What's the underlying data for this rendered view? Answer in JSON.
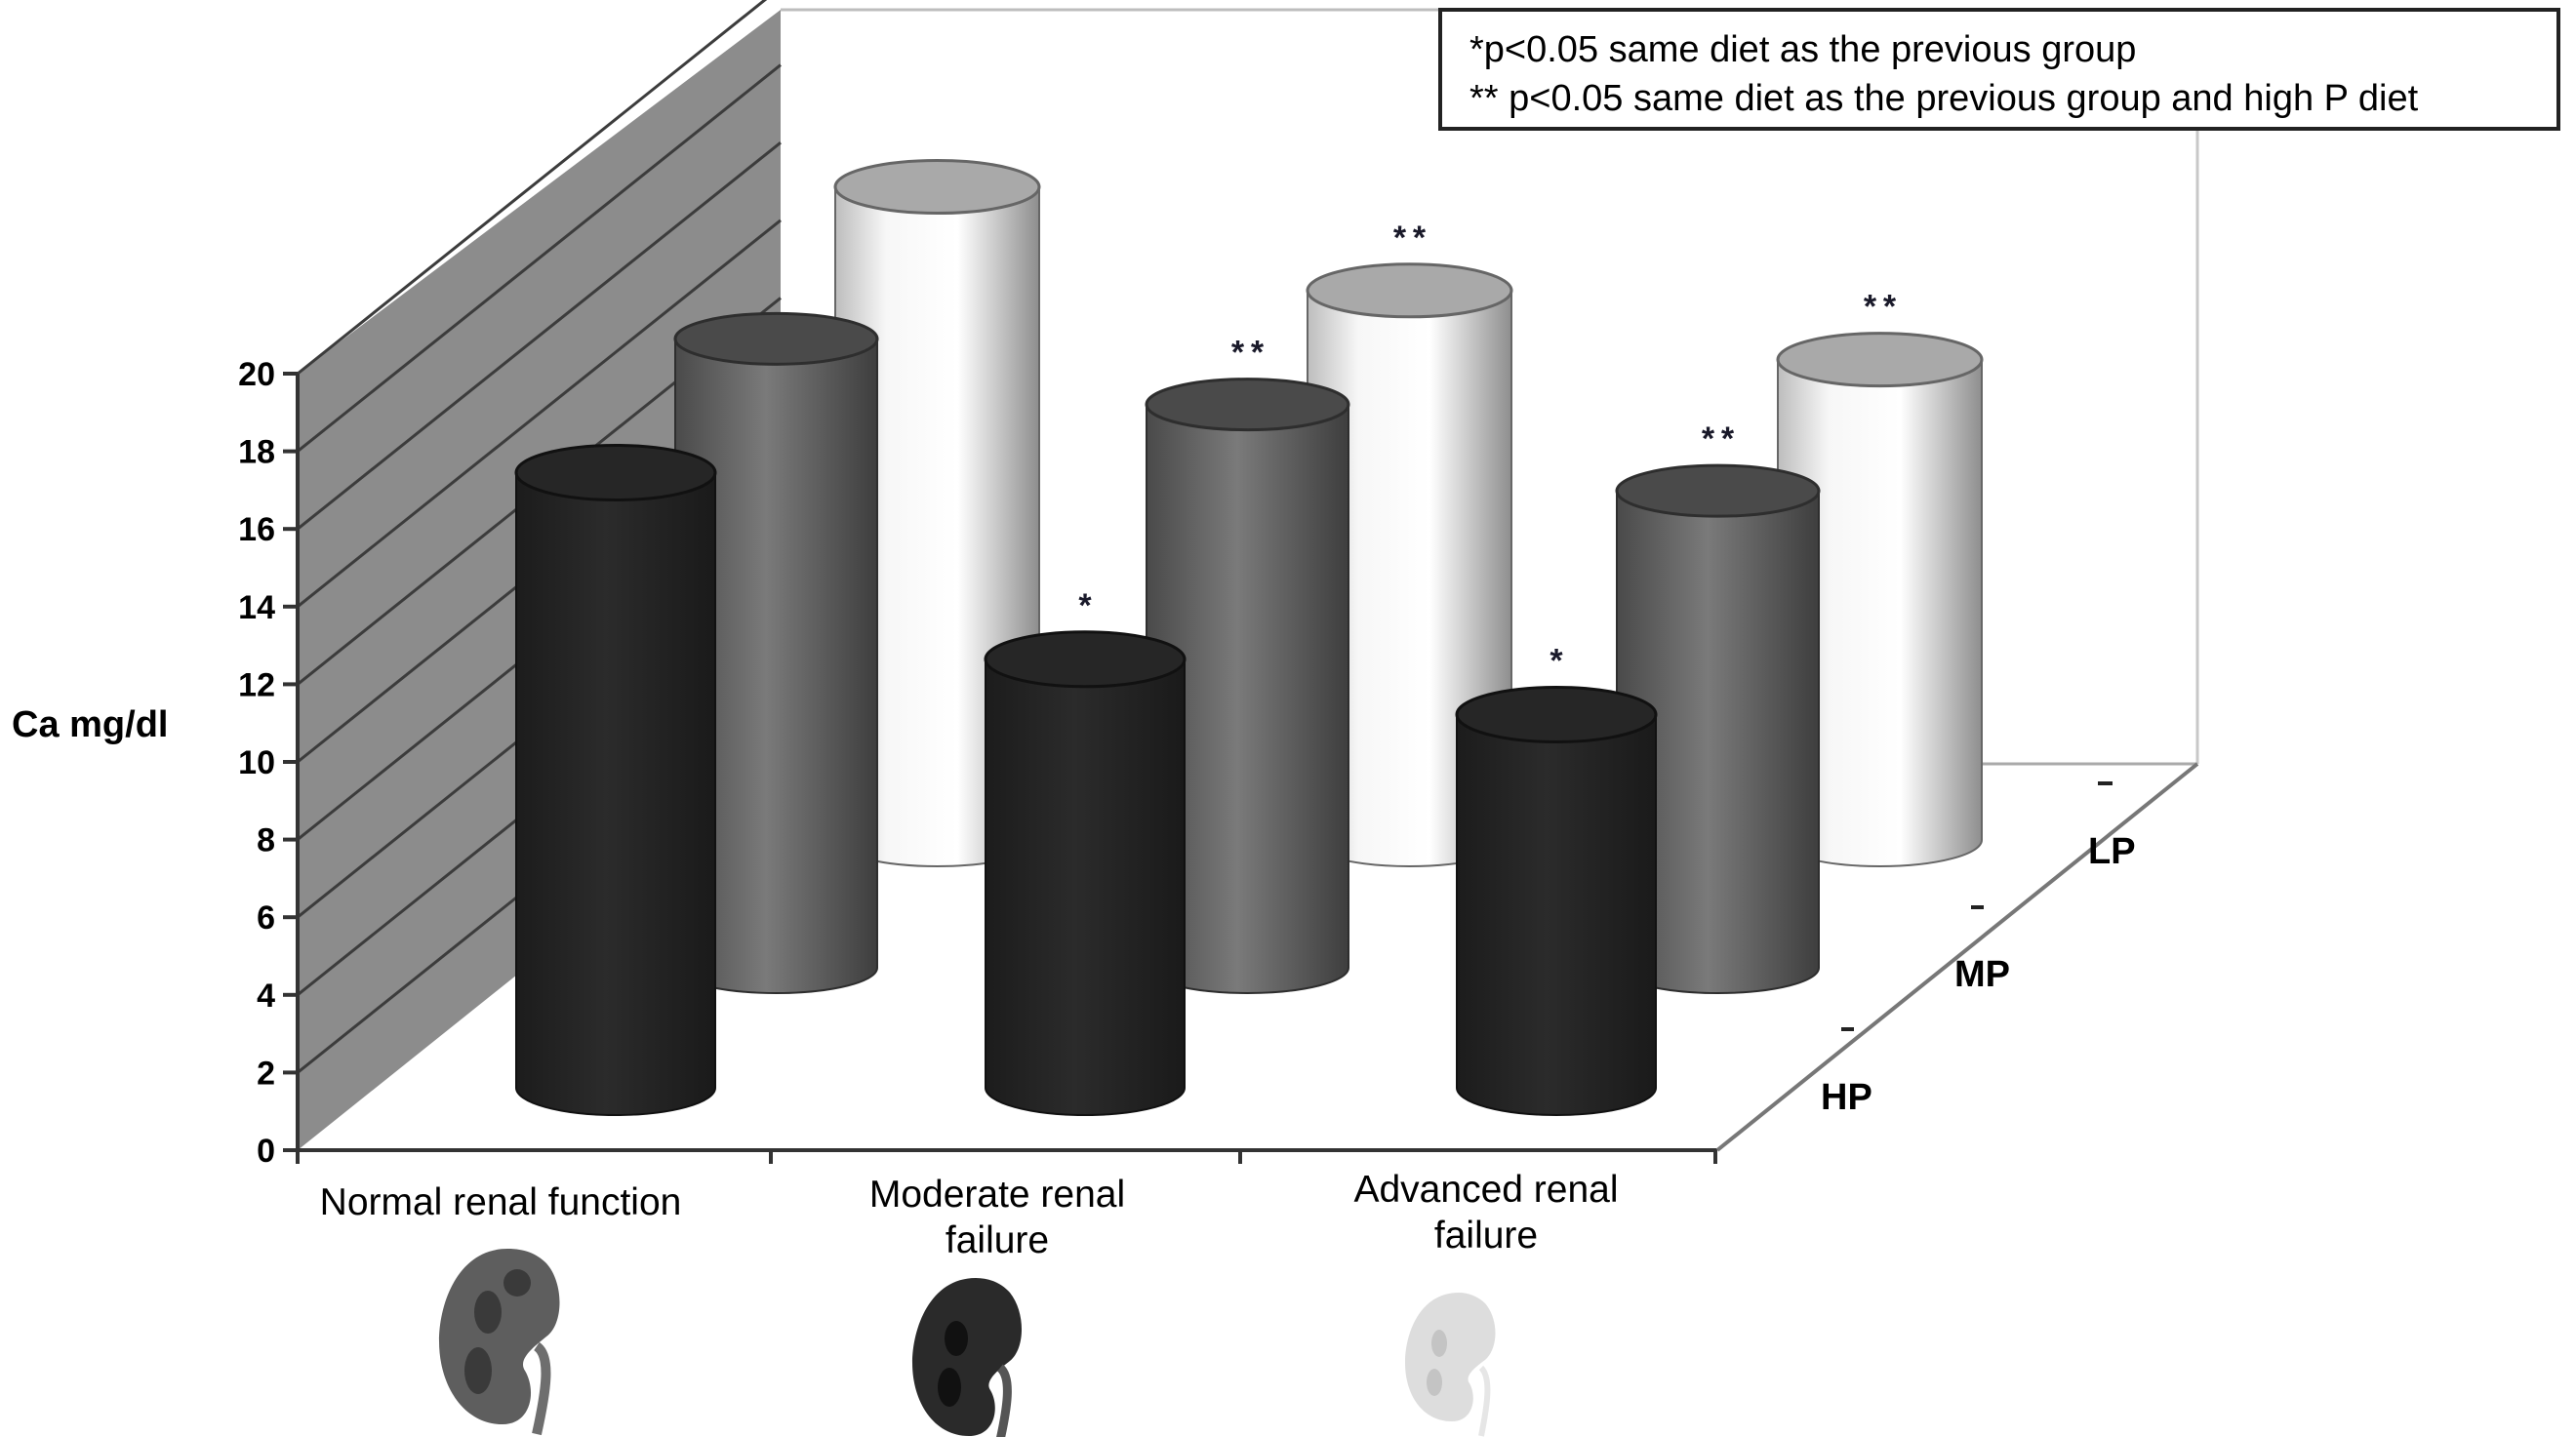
{
  "chart_data": {
    "type": "bar",
    "subtype": "3d-cylinder-grouped",
    "title": "",
    "xlabel": "",
    "ylabel": "Ca mg/dl",
    "ylim": [
      0,
      20
    ],
    "yticks": [
      0,
      2,
      4,
      6,
      8,
      10,
      12,
      14,
      16,
      18,
      20
    ],
    "grid": true,
    "categories": [
      "Normal renal function",
      "Moderate renal failure",
      "Advanced renal failure"
    ],
    "category_lines": [
      [
        "Normal renal function"
      ],
      [
        "Moderate renal",
        "failure"
      ],
      [
        "Advanced renal",
        "failure"
      ]
    ],
    "depth_axis": [
      "HP",
      "MP",
      "LP"
    ],
    "series": [
      {
        "name": "HP",
        "color": "#232323",
        "values": [
          17.8,
          12.4,
          10.8
        ],
        "marks": [
          "",
          "*",
          "*"
        ]
      },
      {
        "name": "MP",
        "color": "#6b6b6b",
        "values": [
          18.2,
          16.3,
          13.8
        ],
        "marks": [
          "",
          "**",
          "**"
        ]
      },
      {
        "name": "LP",
        "color": "#f4f4f4",
        "values": [
          18.9,
          15.9,
          13.9
        ],
        "marks": [
          "",
          "**",
          "**"
        ]
      }
    ],
    "legend": {
      "position": "top-right",
      "entries": [
        "*p<0.05 same diet as the previous group",
        "** p<0.05 same diet as the previous group and high P diet"
      ]
    },
    "annotations": [
      "kidney illustration under each category (normal, darker, faded)"
    ]
  },
  "legend": {
    "line1": "*p<0.05 same diet as the previous group",
    "line2": "** p<0.05 same diet as the previous group and high P diet"
  },
  "axis": {
    "ylabel": "Ca mg/dl"
  },
  "colors": {
    "wall": "#8c8c8c",
    "hp_bar": "#232323",
    "mp_bar": "#6b6b6b",
    "lp_bar": "#f4f4f4"
  }
}
